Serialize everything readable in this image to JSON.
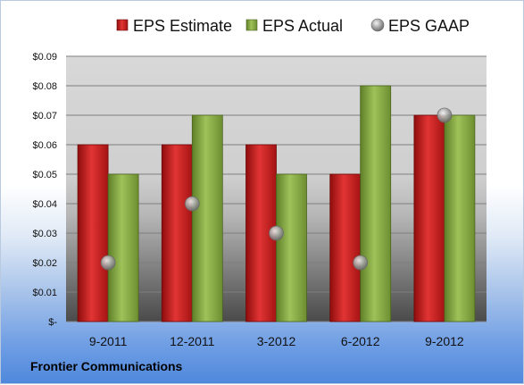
{
  "chart_data": {
    "type": "bar",
    "title": "",
    "xlabel": "",
    "ylabel": "",
    "categories": [
      "9-2011",
      "12-2011",
      "3-2012",
      "6-2012",
      "9-2012"
    ],
    "series": [
      {
        "name": "EPS Estimate",
        "kind": "bar",
        "color": "#cc1f1f",
        "values": [
          0.06,
          0.06,
          0.06,
          0.05,
          0.07
        ]
      },
      {
        "name": "EPS Actual",
        "kind": "bar",
        "color": "#8fb04a",
        "values": [
          0.05,
          0.07,
          0.05,
          0.08,
          0.07
        ]
      },
      {
        "name": "EPS GAAP",
        "kind": "marker",
        "color": "#9a9a9a",
        "values": [
          0.02,
          0.04,
          0.03,
          0.02,
          0.07
        ]
      }
    ],
    "ylim": [
      0,
      0.09
    ],
    "y_ticks": [
      0,
      0.01,
      0.02,
      0.03,
      0.04,
      0.05,
      0.06,
      0.07,
      0.08,
      0.09
    ],
    "y_tick_labels": [
      "$-",
      "$0.01",
      "$0.02",
      "$0.03",
      "$0.04",
      "$0.05",
      "$0.06",
      "$0.07",
      "$0.08",
      "$0.09"
    ],
    "grid": true,
    "legend_position": "top"
  },
  "footer": {
    "source": "Frontier Communications"
  }
}
